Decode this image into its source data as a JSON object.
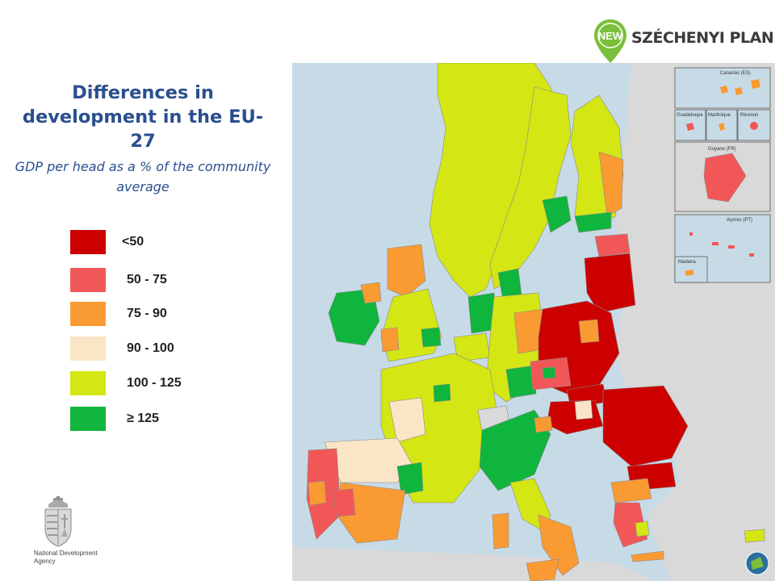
{
  "brand": {
    "badge_text": "NEW",
    "wordmark": "SZÉCHENYI PLAN",
    "badge_color": "#7bbf3a"
  },
  "title": "Differences in development in the EU-27",
  "subtitle": "GDP per head as a % of the community average",
  "legend": [
    {
      "label": "<50",
      "color": "#cc0000"
    },
    {
      "label": "50 - 75",
      "color": "#f25757"
    },
    {
      "label": "75 - 90",
      "color": "#fa9a32"
    },
    {
      "label": "90 - 100",
      "color": "#fae5c6"
    },
    {
      "label": "100 - 125",
      "color": "#d4e614"
    },
    {
      "label": "≥ 125",
      "color": "#0fb53c"
    }
  ],
  "agency": {
    "name": "National Development Agency"
  },
  "map": {
    "insets": [
      "Canarias (ES)",
      "Guadeloupe",
      "Martinique",
      "Réunion",
      "Guyane (FR)",
      "Açores (PT)",
      "Madeira"
    ],
    "colors": {
      "sea": "#c7dbe7",
      "non_eu_land": "#d9d9d9",
      "border": "#8a8a8a"
    }
  }
}
